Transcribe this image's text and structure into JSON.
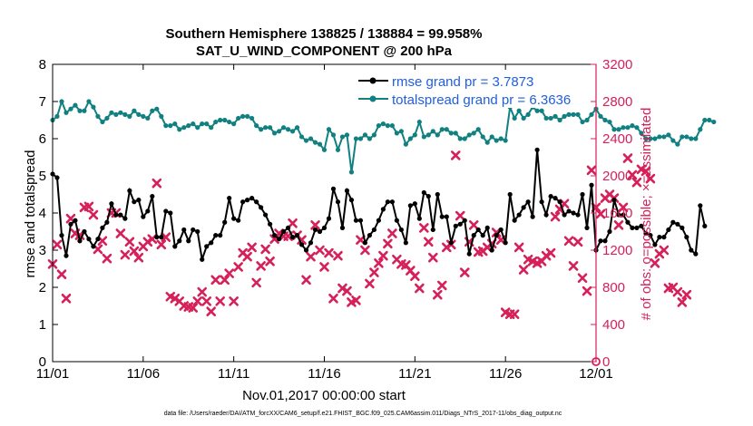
{
  "title_line1": "Southern Hemisphere 138825 / 138884 = 99.958%",
  "title_line2": "SAT_U_WIND_COMPONENT @ 200 hPa",
  "xlabel": "Nov.01,2017 00:00:00 start",
  "ylabel_left": "rmse and totalspread",
  "ylabel_right": "# of obs: o=possible; ×=assimilated",
  "footer": "data file: /Users/raeder/DAI/ATM_forcXX/CAM6_setup/f.e21.FHIST_BGC.f09_025.CAM6assim.011/Diags_NTrS_2017-11/obs_diag_output.nc",
  "colors": {
    "rmse": "#000000",
    "spread": "#118080",
    "obs": "#d6205a",
    "legend_text": "#1f5fe0"
  },
  "chart_data": {
    "type": "line",
    "xlim": [
      0,
      30
    ],
    "ylim_left": [
      0,
      8
    ],
    "ylim_right": [
      0,
      3200
    ],
    "x_tick_labels": [
      "11/01",
      "11/06",
      "11/11",
      "11/16",
      "11/21",
      "11/26",
      "12/01"
    ],
    "y_left_ticks": [
      "0",
      "1",
      "2",
      "3",
      "4",
      "5",
      "6",
      "7",
      "8"
    ],
    "y_right_ticks": [
      "0",
      "400",
      "800",
      "1200",
      "1600",
      "2000",
      "2400",
      "2800",
      "3200"
    ],
    "legend": [
      "rmse grand pr = 3.7873",
      "totalspread grand pr = 6.3636"
    ],
    "legend_position": "top-right",
    "x_step_days": 0.25,
    "series": [
      {
        "name": "rmse grand pr = 3.7873",
        "axis": "left",
        "style": "line-marker",
        "values": [
          5.05,
          4.95,
          3.4,
          2.85,
          3.7,
          3.8,
          3.25,
          3.5,
          3.3,
          3.1,
          3.3,
          3.6,
          3.75,
          4.25,
          3.95,
          3.95,
          3.85,
          4.6,
          4.3,
          4.35,
          3.9,
          4.05,
          4.45,
          3.35,
          3.35,
          4.05,
          4.0,
          3.1,
          3.25,
          3.55,
          3.25,
          3.55,
          3.5,
          2.75,
          3.1,
          3.2,
          3.4,
          3.4,
          3.75,
          4.4,
          3.85,
          3.8,
          4.3,
          4.35,
          4.4,
          4.3,
          4.15,
          3.95,
          3.7,
          3.4,
          3.3,
          3.5,
          3.6,
          3.35,
          3.4,
          3.15,
          3.0,
          3.2,
          3.55,
          3.5,
          3.6,
          3.85,
          4.65,
          4.3,
          3.6,
          4.6,
          4.35,
          3.8,
          3.8,
          3.2,
          3.4,
          3.55,
          3.8,
          4.1,
          4.3,
          4.3,
          3.8,
          3.55,
          3.2,
          4.2,
          4.25,
          3.85,
          4.55,
          4.45,
          3.55,
          4.5,
          3.9,
          3.9,
          3.2,
          3.65,
          3.7,
          3.8,
          2.9,
          3.4,
          3.55,
          3.4,
          3.6,
          3.0,
          3.4,
          3.55,
          3.2,
          4.5,
          3.8,
          3.95,
          4.15,
          4.3,
          3.9,
          5.7,
          4.3,
          3.95,
          4.45,
          4.4,
          4.3,
          3.95,
          4.05,
          4.0,
          3.95,
          4.5,
          3.6,
          4.75,
          3.0,
          3.25,
          3.25,
          3.5,
          4.35,
          3.95,
          3.95,
          3.75,
          3.6,
          3.6,
          3.65,
          3.45,
          3.4,
          3.15,
          3.35,
          3.35,
          3.55,
          3.75,
          3.7,
          3.6,
          3.35,
          3.0,
          2.9,
          4.2,
          3.65
        ]
      },
      {
        "name": "totalspread grand pr = 6.3636",
        "axis": "left",
        "style": "line-marker",
        "values": [
          6.5,
          6.6,
          7.0,
          6.7,
          6.8,
          6.9,
          6.75,
          6.75,
          7.0,
          6.85,
          6.6,
          6.45,
          6.55,
          6.7,
          6.65,
          6.7,
          6.65,
          6.6,
          6.75,
          6.65,
          6.6,
          6.55,
          6.75,
          6.8,
          6.6,
          6.35,
          6.35,
          6.4,
          6.25,
          6.3,
          6.35,
          6.4,
          6.3,
          6.4,
          6.4,
          6.3,
          6.45,
          6.5,
          6.5,
          6.45,
          6.4,
          6.55,
          6.6,
          6.6,
          6.55,
          6.35,
          6.25,
          6.3,
          6.3,
          6.15,
          6.2,
          6.3,
          6.25,
          6.2,
          6.3,
          6.05,
          5.95,
          6.0,
          5.9,
          5.85,
          5.7,
          6.25,
          6.1,
          5.7,
          6.05,
          6.1,
          5.1,
          6.0,
          6.0,
          6.1,
          6.0,
          6.1,
          6.35,
          6.4,
          6.35,
          6.35,
          6.15,
          6.2,
          5.85,
          6.0,
          6.1,
          6.45,
          6.05,
          6.1,
          6.2,
          6.1,
          6.25,
          6.25,
          6.15,
          6.15,
          6.0,
          6.0,
          6.1,
          6.15,
          6.25,
          6.05,
          5.9,
          6.05,
          5.95,
          6.0,
          5.95,
          6.85,
          6.55,
          6.75,
          6.55,
          6.65,
          6.85,
          6.75,
          6.75,
          6.55,
          6.55,
          6.6,
          6.5,
          6.6,
          6.65,
          6.65,
          6.65,
          6.45,
          6.5,
          6.65,
          6.8,
          6.6,
          6.5,
          6.45,
          6.25,
          6.25,
          6.3,
          6.3,
          6.35,
          6.3,
          6.15,
          6.0,
          6.0,
          6.0,
          6.05,
          6.05,
          6.1,
          5.95,
          5.85,
          6.05,
          6.05,
          6.0,
          6.0,
          6.25,
          6.5,
          6.5,
          6.45
        ]
      },
      {
        "name": "",
        "axis": "right",
        "style": "markers-x",
        "values": [
          1050,
          1260,
          940,
          680,
          1540,
          1380,
          1360,
          1660,
          1670,
          1580,
          1210,
          1300,
          1110,
          1600,
          1600,
          1380,
          1150,
          1290,
          1190,
          1120,
          1240,
          1290,
          1320,
          1920,
          1260,
          1340,
          700,
          680,
          650,
          600,
          590,
          580,
          650,
          750,
          650,
          540,
          880,
          650,
          880,
          950,
          650,
          1020,
          1170,
          1130,
          1230,
          850,
          1030,
          1210,
          1080,
          1320,
          1380,
          1350,
          1350,
          1490,
          1360,
          1310,
          880,
          1130,
          1470,
          1200,
          1020,
          1170,
          680,
          1140,
          790,
          760,
          640,
          660,
          1310,
          1200,
          840,
          960,
          1060,
          1140,
          1270,
          1380,
          1100,
          1050,
          1040,
          980,
          920,
          790,
          1440,
          1290,
          1120,
          720,
          820,
          1230,
          1260,
          2220,
          1570,
          960,
          1290,
          1470,
          1180,
          1190,
          1230,
          1270,
          1390,
          1310,
          530,
          510,
          510,
          1230,
          990,
          1100,
          1080,
          1060,
          1080,
          1140,
          1170,
          1560,
          1640,
          1700,
          1300,
          1030,
          1290,
          900,
          760,
          2060,
          1660,
          1590,
          1760,
          1800,
          1760,
          1470,
          1660,
          2190,
          2010,
          1930,
          2070,
          2050,
          1970,
          1060,
          1160,
          1200,
          790,
          800,
          750,
          640,
          720
        ]
      }
    ]
  }
}
